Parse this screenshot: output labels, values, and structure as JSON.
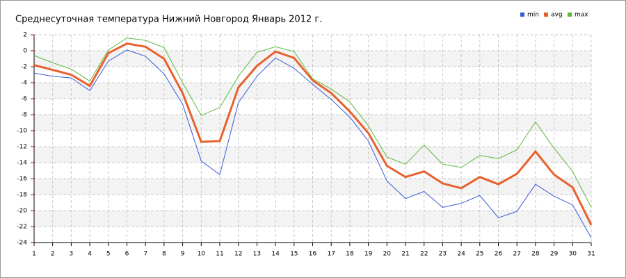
{
  "chart_data": {
    "type": "line",
    "title": "Среднесуточная температура Нижний Новгород  Январь 2012 г.",
    "x": [
      1,
      2,
      3,
      4,
      5,
      6,
      7,
      8,
      9,
      10,
      11,
      12,
      13,
      14,
      15,
      16,
      17,
      18,
      19,
      20,
      21,
      22,
      23,
      24,
      25,
      26,
      27,
      28,
      29,
      30,
      31
    ],
    "xlim": [
      1,
      31
    ],
    "xticks": [
      1,
      2,
      3,
      4,
      5,
      6,
      7,
      8,
      9,
      10,
      11,
      12,
      13,
      14,
      15,
      16,
      17,
      18,
      19,
      20,
      21,
      22,
      23,
      24,
      25,
      26,
      27,
      28,
      29,
      30,
      31
    ],
    "ylim": [
      -24,
      2
    ],
    "yticks": [
      -24,
      -22,
      -20,
      -18,
      -16,
      -14,
      -12,
      -10,
      -8,
      -6,
      -4,
      -2,
      0,
      2
    ],
    "grid": true,
    "legend": "top-right",
    "series": [
      {
        "name": "min",
        "color": "#3a5bd6",
        "values": [
          -2.8,
          -3.2,
          -3.4,
          -5.0,
          -1.3,
          0.1,
          -0.7,
          -2.9,
          -6.7,
          -13.8,
          -15.5,
          -6.5,
          -3.2,
          -0.9,
          -2.2,
          -4.2,
          -6.1,
          -8.3,
          -11.3,
          -16.3,
          -18.5,
          -17.6,
          -19.6,
          -19.1,
          -18.1,
          -20.9,
          -20.1,
          -16.7,
          -18.2,
          -19.3,
          -23.4
        ]
      },
      {
        "name": "avg",
        "color": "#e8602c",
        "values": [
          -1.8,
          -2.4,
          -3.0,
          -4.4,
          -0.3,
          0.9,
          0.5,
          -1.0,
          -5.3,
          -11.4,
          -11.3,
          -4.6,
          -1.9,
          -0.1,
          -0.9,
          -3.7,
          -5.3,
          -7.6,
          -10.3,
          -14.4,
          -15.8,
          -15.1,
          -16.6,
          -17.2,
          -15.8,
          -16.7,
          -15.4,
          -12.6,
          -15.5,
          -17.1,
          -21.8
        ]
      },
      {
        "name": "max",
        "color": "#5cb83a",
        "values": [
          -0.6,
          -1.5,
          -2.3,
          -3.8,
          0.1,
          1.6,
          1.3,
          0.4,
          -4.0,
          -8.1,
          -7.1,
          -3.2,
          -0.2,
          0.5,
          -0.1,
          -3.5,
          -4.8,
          -6.4,
          -9.4,
          -13.3,
          -14.2,
          -11.8,
          -14.2,
          -14.6,
          -13.1,
          -13.5,
          -12.4,
          -8.9,
          -12.2,
          -15.1,
          -19.6
        ]
      }
    ]
  }
}
